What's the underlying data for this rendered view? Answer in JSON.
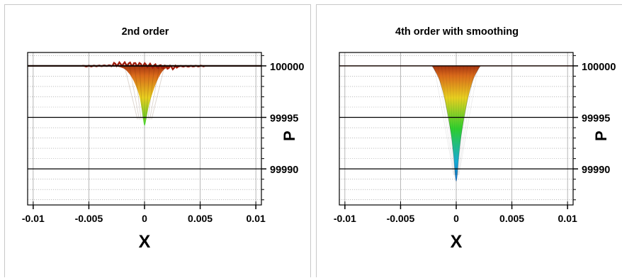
{
  "chart_data": [
    {
      "type": "surface",
      "title": "2nd order",
      "xlabel": "X",
      "ylabel": "",
      "xlim": [
        -0.0105,
        0.0105
      ],
      "ylim": [
        99986.5,
        100001.3
      ],
      "x_ticks": [
        -0.01,
        -0.005,
        0,
        0.005,
        0.01
      ],
      "x_tick_labels": [
        "-0.01",
        "-0.005",
        "0",
        "0.005",
        "0.01"
      ],
      "y_ticks": [],
      "y_tick_labels": [],
      "grid": true,
      "series": [
        {
          "x": [
            -0.01,
            -0.005,
            -0.003,
            -0.002,
            -0.0015,
            -0.001,
            -0.0005,
            -0.00025,
            0,
            0.00025,
            0.0005,
            0.001,
            0.0015,
            0.002,
            0.003,
            0.005,
            0.01
          ],
          "y": [
            100000,
            100000,
            100000,
            99999.8,
            99999.4,
            99998.6,
            99997.2,
            99995.8,
            99994.2,
            99995.4,
            99996.6,
            99998.2,
            99999.3,
            99999.8,
            100000,
            100000,
            100000
          ]
        }
      ]
    },
    {
      "type": "surface",
      "title": "4th order with smoothing",
      "xlabel": "X",
      "ylabel": "P",
      "xlim": [
        -0.0105,
        0.0105
      ],
      "ylim": [
        99986.5,
        100001.3
      ],
      "x_ticks": [
        -0.01,
        -0.005,
        0,
        0.005,
        0.01
      ],
      "x_tick_labels": [
        "-0.01",
        "-0.005",
        "0",
        "0.005",
        "0.01"
      ],
      "y_ticks": [
        100000,
        99995,
        99990
      ],
      "y_tick_labels": [
        "100000",
        "99995",
        "99990"
      ],
      "grid": true,
      "series": [
        {
          "x": [
            -0.0022,
            -0.002,
            -0.0015,
            -0.001,
            -0.0005,
            -0.00025,
            0,
            0.00025,
            0.0005,
            0.001,
            0.0015,
            0.002,
            0.0022
          ],
          "y": [
            100000,
            99999.7,
            99998.6,
            99996.6,
            99993.6,
            99991.4,
            99988.8,
            99991.4,
            99993.6,
            99996.6,
            99998.6,
            99999.7,
            100000
          ]
        }
      ]
    }
  ],
  "panels": {
    "left_ylabel": "P",
    "left_y_tick_labels": [
      "100000",
      "99995",
      "99990"
    ],
    "colors": {
      "high": "#8b1a0c",
      "mid_high": "#d96a1a",
      "mid": "#e8d020",
      "mid_low": "#2fd12f",
      "low": "#16b3e0",
      "bottom": "#1565c8",
      "frame": "#000000",
      "grid": "#999999"
    }
  }
}
